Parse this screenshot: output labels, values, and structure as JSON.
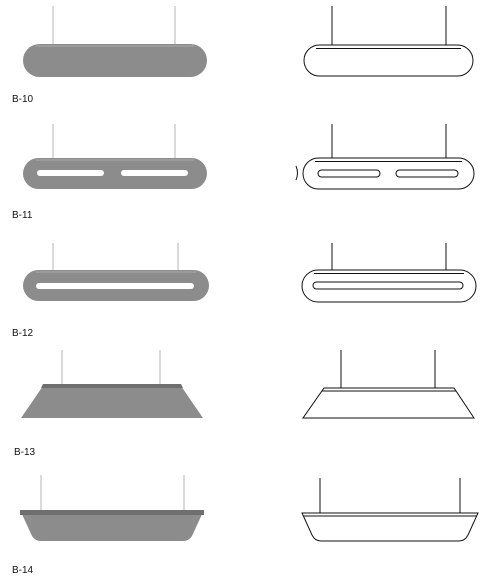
{
  "colors": {
    "felt": "#8c8c8c",
    "felt_dark": "#6f6f6f",
    "felt_top": "#a2a2a2",
    "cable": "#b5b5b5",
    "outline": "#111111",
    "background": "#ffffff"
  },
  "items": [
    {
      "label": "B-10",
      "shape": "pill",
      "cutouts": "none"
    },
    {
      "label": "B-11",
      "shape": "pill",
      "cutouts": "two-slots"
    },
    {
      "label": "B-12",
      "shape": "pill",
      "cutouts": "one-slot"
    },
    {
      "label": "B-13",
      "shape": "trapezoid",
      "cutouts": "none"
    },
    {
      "label": "B-14",
      "shape": "tray",
      "cutouts": "none"
    }
  ]
}
